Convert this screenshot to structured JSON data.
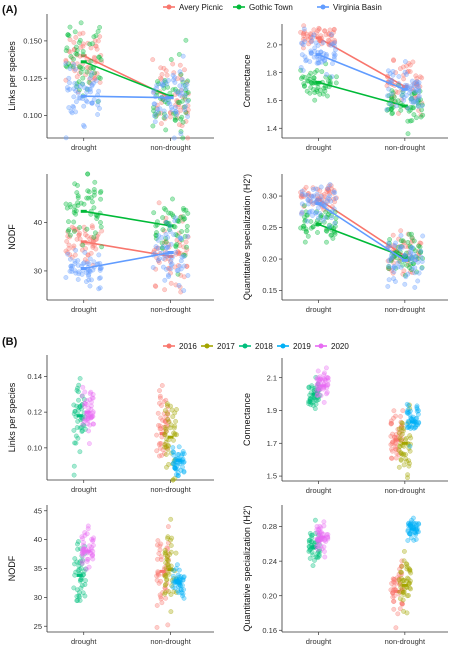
{
  "figure": {
    "panelA": {
      "label": "(A)"
    },
    "panelB": {
      "label": "(B)"
    }
  },
  "legendA": [
    {
      "name": "Avery Picnic",
      "color": "#F8766D"
    },
    {
      "name": "Gothic Town",
      "color": "#00BA38"
    },
    {
      "name": "Virginia Basin",
      "color": "#619CFF"
    }
  ],
  "legendB": [
    {
      "name": "2016",
      "color": "#F8766D"
    },
    {
      "name": "2017",
      "color": "#A3A500"
    },
    {
      "name": "2018",
      "color": "#00BF7D"
    },
    {
      "name": "2019",
      "color": "#00B0F6"
    },
    {
      "name": "2020",
      "color": "#E76BF3"
    }
  ],
  "chart_data": [
    {
      "type": "scatter",
      "panel": "A",
      "ylabel": "Links per species",
      "categories": [
        "drought",
        "non-drought"
      ],
      "ylim": [
        0.085,
        0.168
      ],
      "yticks": [
        0.1,
        0.125,
        0.15
      ],
      "ytick_labels": [
        "0.100",
        "0.125",
        "0.150"
      ],
      "series": [
        {
          "name": "Avery Picnic",
          "values": [
            0.14,
            0.112
          ],
          "spread": [
            0.01,
            0.012
          ]
        },
        {
          "name": "Gothic Town",
          "values": [
            0.136,
            0.113
          ],
          "spread": [
            0.012,
            0.013
          ]
        },
        {
          "name": "Virginia Basin",
          "values": [
            0.113,
            0.112
          ],
          "spread": [
            0.008,
            0.01
          ]
        }
      ]
    },
    {
      "type": "scatter",
      "panel": "A",
      "ylabel": "Connectance",
      "categories": [
        "drought",
        "non-drought"
      ],
      "ylim": [
        1.33,
        2.15
      ],
      "yticks": [
        1.4,
        1.6,
        1.8,
        2.0
      ],
      "ytick_labels": [
        "1.4",
        "1.6",
        "1.8",
        "2.0"
      ],
      "series": [
        {
          "name": "Avery Picnic",
          "values": [
            2.05,
            1.7
          ],
          "spread": [
            0.04,
            0.08
          ]
        },
        {
          "name": "Gothic Town",
          "values": [
            1.73,
            1.56
          ],
          "spread": [
            0.07,
            0.07
          ]
        },
        {
          "name": "Virginia Basin",
          "values": [
            1.93,
            1.68
          ],
          "spread": [
            0.06,
            0.08
          ]
        }
      ]
    },
    {
      "type": "scatter",
      "panel": "A",
      "ylabel": "NODF",
      "categories": [
        "drought",
        "non-drought"
      ],
      "ylim": [
        24,
        50
      ],
      "yticks": [
        30,
        40
      ],
      "ytick_labels": [
        "30",
        "40"
      ],
      "series": [
        {
          "name": "Avery Picnic",
          "values": [
            36.0,
            33.0
          ],
          "spread": [
            2.0,
            3.5
          ]
        },
        {
          "name": "Gothic Town",
          "values": [
            42.3,
            39.3
          ],
          "spread": [
            3.5,
            3.5
          ]
        },
        {
          "name": "Virginia Basin",
          "values": [
            30.5,
            33.8
          ],
          "spread": [
            2.0,
            3.0
          ]
        }
      ]
    },
    {
      "type": "scatter",
      "panel": "A",
      "ylabel": "Quantitative specialization (H2')",
      "categories": [
        "drought",
        "non-drought"
      ],
      "ylim": [
        0.135,
        0.335
      ],
      "yticks": [
        0.15,
        0.2,
        0.25,
        0.3
      ],
      "ytick_labels": [
        "0.15",
        "0.20",
        "0.25",
        "0.30"
      ],
      "series": [
        {
          "name": "Avery Picnic",
          "values": [
            0.295,
            0.205
          ],
          "spread": [
            0.012,
            0.018
          ]
        },
        {
          "name": "Gothic Town",
          "values": [
            0.255,
            0.203
          ],
          "spread": [
            0.014,
            0.016
          ]
        },
        {
          "name": "Virginia Basin",
          "values": [
            0.288,
            0.198
          ],
          "spread": [
            0.014,
            0.018
          ]
        }
      ]
    },
    {
      "type": "scatter",
      "panel": "B",
      "ylabel": "Links per species",
      "categories": [
        "drought",
        "non-drought"
      ],
      "ylim": [
        0.082,
        0.152
      ],
      "yticks": [
        0.1,
        0.12,
        0.14
      ],
      "ytick_labels": [
        "0.10",
        "0.12",
        "0.14"
      ],
      "series": [
        {
          "name": "2016",
          "values": [
            null,
            0.108
          ],
          "spread": [
            0,
            0.012
          ]
        },
        {
          "name": "2017",
          "values": [
            null,
            0.106
          ],
          "spread": [
            0,
            0.011
          ]
        },
        {
          "name": "2018",
          "values": [
            0.118,
            null
          ],
          "spread": [
            0.01,
            0
          ]
        },
        {
          "name": "2019",
          "values": [
            null,
            0.093
          ],
          "spread": [
            0,
            0.004
          ]
        },
        {
          "name": "2020",
          "values": [
            0.12,
            null
          ],
          "spread": [
            0.006,
            0
          ]
        }
      ]
    },
    {
      "type": "scatter",
      "panel": "B",
      "ylabel": "Connectance",
      "categories": [
        "drought",
        "non-drought"
      ],
      "ylim": [
        1.47,
        2.22
      ],
      "yticks": [
        1.5,
        1.7,
        1.9,
        2.1
      ],
      "ytick_labels": [
        "1.5",
        "1.7",
        "1.9",
        "2.1"
      ],
      "series": [
        {
          "name": "2016",
          "values": [
            null,
            1.72
          ],
          "spread": [
            0,
            0.09
          ]
        },
        {
          "name": "2017",
          "values": [
            null,
            1.7
          ],
          "spread": [
            0,
            0.09
          ]
        },
        {
          "name": "2018",
          "values": [
            2.0,
            null
          ],
          "spread": [
            0,
            0.07
          ]
        },
        {
          "name": "2019",
          "values": [
            null,
            1.83
          ],
          "spread": [
            0,
            0.06
          ]
        },
        {
          "name": "2020",
          "values": [
            2.05,
            null
          ],
          "spread": [
            0.05,
            0
          ]
        }
      ]
    },
    {
      "type": "scatter",
      "panel": "B",
      "ylabel": "NODF",
      "categories": [
        "drought",
        "non-drought"
      ],
      "ylim": [
        24,
        46
      ],
      "yticks": [
        25,
        30,
        35,
        40,
        45
      ],
      "ytick_labels": [
        "25",
        "30",
        "35",
        "40",
        "45"
      ],
      "series": [
        {
          "name": "2016",
          "values": [
            null,
            34.5
          ],
          "spread": [
            0,
            4.0
          ]
        },
        {
          "name": "2017",
          "values": [
            null,
            34.8
          ],
          "spread": [
            0,
            3.5
          ]
        },
        {
          "name": "2018",
          "values": [
            33.8,
            null
          ],
          "spread": [
            3.0,
            0
          ]
        },
        {
          "name": "2019",
          "values": [
            null,
            32.5
          ],
          "spread": [
            0,
            1.5
          ]
        },
        {
          "name": "2020",
          "values": [
            38.0,
            null
          ],
          "spread": [
            1.8,
            0
          ]
        }
      ]
    },
    {
      "type": "scatter",
      "panel": "B",
      "ylabel": "Quantitative specialization (H2')",
      "categories": [
        "drought",
        "non-drought"
      ],
      "ylim": [
        0.158,
        0.305
      ],
      "yticks": [
        0.16,
        0.2,
        0.24,
        0.28
      ],
      "ytick_labels": [
        "0.16",
        "0.20",
        "0.24",
        "0.28"
      ],
      "series": [
        {
          "name": "2016",
          "values": [
            null,
            0.205
          ],
          "spread": [
            0,
            0.014
          ]
        },
        {
          "name": "2017",
          "values": [
            null,
            0.212
          ],
          "spread": [
            0,
            0.015
          ]
        },
        {
          "name": "2018",
          "values": [
            0.256,
            null
          ],
          "spread": [
            0.01,
            0
          ]
        },
        {
          "name": "2019",
          "values": [
            null,
            0.277
          ],
          "spread": [
            0,
            0.007
          ]
        },
        {
          "name": "2020",
          "values": [
            0.268,
            null
          ],
          "spread": [
            0.007,
            0
          ]
        }
      ]
    }
  ]
}
